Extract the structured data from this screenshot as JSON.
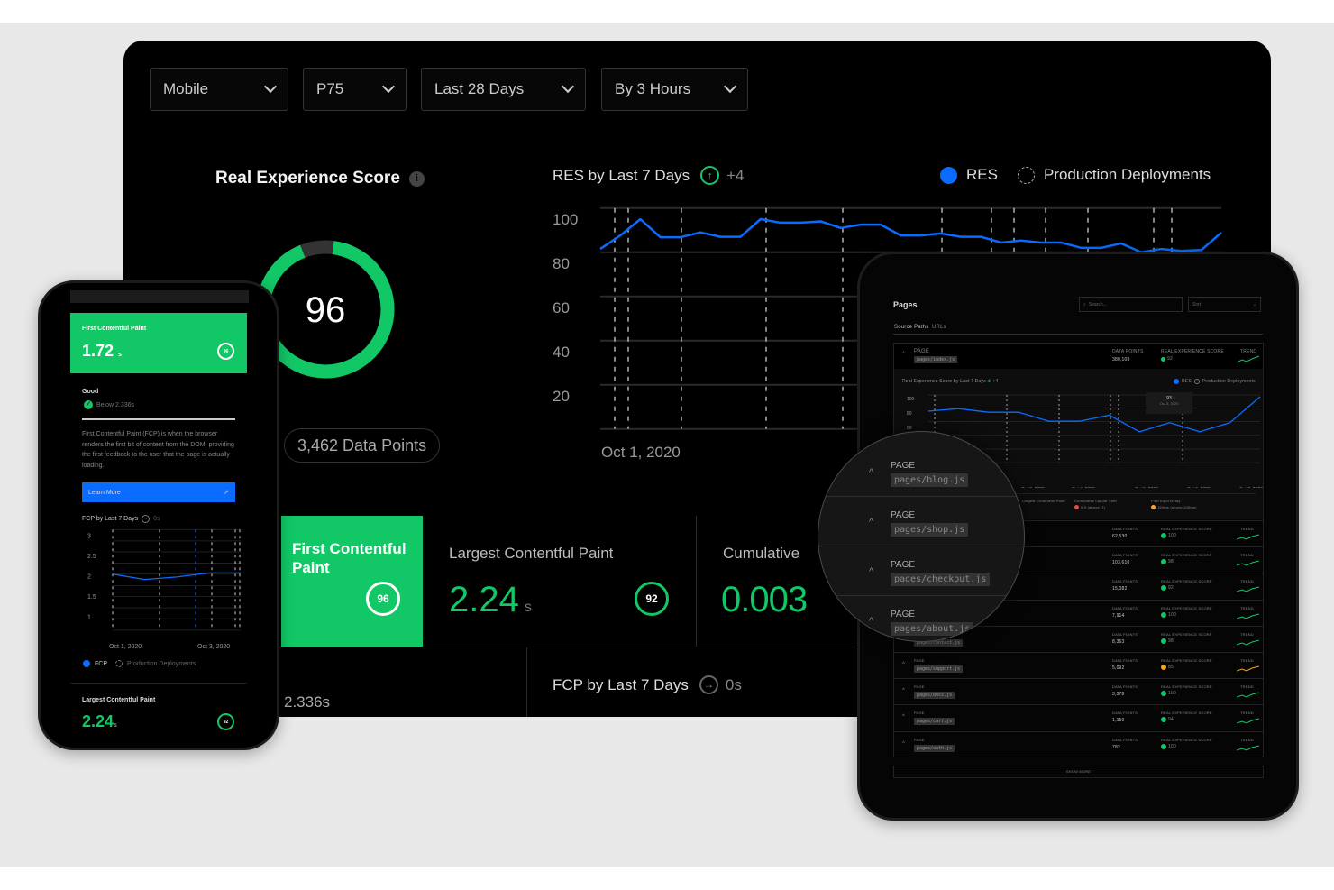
{
  "filters": [
    {
      "label": "Mobile"
    },
    {
      "label": "P75"
    },
    {
      "label": "Last 28 Days"
    },
    {
      "label": "By 3 Hours"
    }
  ],
  "res": {
    "title": "Real Experience Score",
    "info_icon": "info-icon",
    "score": 96,
    "score_label": "96",
    "data_points": "3,462 Data Points",
    "color": "#12c766"
  },
  "res_chart_header": {
    "title": "RES by Last 7 Days",
    "delta": "+4",
    "delta_icon": "arrow-up-circle-icon",
    "legend": [
      {
        "label": "RES",
        "color": "#0a6cff"
      },
      {
        "label": "Production Deployments"
      }
    ]
  },
  "metrics": [
    {
      "label": "First Contentful Paint",
      "score": "96",
      "highlight": true
    },
    {
      "label": "Largest Contentful Paint",
      "value": "2.24",
      "unit": "s",
      "score": "92"
    },
    {
      "label": "Cumulative",
      "value": "0.003"
    }
  ],
  "fcp_section": {
    "title": "FCP by Last 7 Days",
    "delta": "0s",
    "partial": "2.336s"
  },
  "phone": {
    "card": {
      "label": "First Contentful Paint",
      "value": "1.72",
      "unit": "s",
      "score": "96"
    },
    "status": "Good",
    "threshold": "Below 2.336s",
    "description": "First Contentful Paint (FCP) is when the browser renders the first bit of content from the DOM, providing the first feedback to the user that the page is actually loading.",
    "learn_more": "Learn More",
    "chart_title": "FCP by Last 7 Days",
    "chart_delta": "0s",
    "legend": [
      {
        "label": "FCP"
      },
      {
        "label": "Production Deployments"
      }
    ],
    "lcp": {
      "label": "Largest Contentful Paint",
      "value": "2.24",
      "unit": "s",
      "score": "92"
    }
  },
  "tablet": {
    "title": "Pages",
    "search_placeholder": "Search...",
    "select": "Sort",
    "tabs": [
      {
        "label": "Source Paths"
      },
      {
        "label": "URLs"
      }
    ],
    "col_page": "PAGE",
    "col_points": "DATA POINTS",
    "col_score": "REAL EXPERIENCE SCORE",
    "col_trend": "TREND",
    "first_row": {
      "page": "pages/index.js",
      "points": "380,109",
      "score": "92"
    },
    "chart_title": "Real Experience Score by Last 7 Days",
    "chart_delta": "+4",
    "chart_legend": [
      "RES",
      "Production Deployments"
    ],
    "tooltip": {
      "value": "93",
      "date": "Oct 5, 2020"
    },
    "metrics": [
      {
        "label": "Largest Contentful Paint"
      },
      {
        "label": "Cumulative Layout Shift",
        "value": "0.5 (above .1)",
        "color": "#e5484d"
      },
      {
        "label": "First Input Delay",
        "value": "150ms (above 100ms)",
        "color": "#f5a623"
      }
    ],
    "rows": [
      {
        "page": "pages/shop.js",
        "points": "62,530",
        "score": "100",
        "status": "#12c766"
      },
      {
        "page": "pages/checkout.js",
        "points": "103,610",
        "score": "98",
        "status": "#12c766"
      },
      {
        "page": "pages/about.js",
        "points": "15,082",
        "score": "92",
        "status": "#12c766"
      },
      {
        "page": "pages/blog.js",
        "points": "7,914",
        "score": "100",
        "status": "#12c766"
      },
      {
        "page": "pages/contact.js",
        "points": "8,363",
        "score": "98",
        "status": "#12c766"
      },
      {
        "page": "pages/support.js",
        "points": "5,092",
        "score": "85",
        "status": "#f5a623"
      },
      {
        "page": "pages/docs.js",
        "points": "3,378",
        "score": "100",
        "status": "#12c766"
      },
      {
        "page": "pages/cart.js",
        "points": "1,150",
        "score": "94",
        "status": "#12c766"
      },
      {
        "page": "pages/auth.js",
        "points": "782",
        "score": "100",
        "status": "#12c766"
      }
    ],
    "show_more": "SHOW MORE",
    "magnifier": [
      {
        "label": "PAGE",
        "page": "pages/blog.js"
      },
      {
        "label": "PAGE",
        "page": "pages/shop.js"
      },
      {
        "label": "PAGE",
        "page": "pages/checkout.js"
      },
      {
        "label": "PAGE",
        "page": "pages/about.js"
      }
    ]
  },
  "chart_data": [
    {
      "type": "line",
      "title": "RES by Last 7 Days",
      "series": [
        {
          "name": "RES",
          "values": [
            86.5,
            92.6,
            100,
            91.8,
            91.8,
            94,
            92,
            92,
            100,
            98.4,
            98.4,
            99,
            96,
            97.5,
            97.5,
            92.6,
            92.6,
            93.5,
            92,
            92,
            89.4,
            90.3,
            89.4,
            89.4,
            87,
            87,
            89,
            85,
            86.5,
            85.6,
            86,
            93.9
          ]
        }
      ],
      "yticks": [
        100,
        80,
        60,
        40,
        20
      ],
      "xticks": [
        "Oct 1, 2020"
      ],
      "ylim": [
        5,
        105
      ],
      "deployments": 12,
      "grid": true,
      "legend": "top-right"
    },
    {
      "type": "line",
      "title": "FCP by Last 7 Days",
      "series": [
        {
          "name": "FCP",
          "values": [
            2.05,
            1.92,
            1.98,
            2.08,
            2.08
          ]
        }
      ],
      "yticks": [
        3,
        2.5,
        2,
        1.5,
        1
      ],
      "xticks": [
        "Oct 1, 2020",
        "Oct 3, 2020"
      ],
      "ylim": [
        0.6,
        3.2
      ],
      "grid": true
    },
    {
      "type": "line",
      "title": "Real Experience Score by Last 7 Days",
      "series": [
        {
          "name": "RES",
          "values": [
            82.5,
            86,
            81,
            81,
            68.5,
            68.5,
            77,
            54,
            66.5,
            54,
            66.5,
            102.5
          ]
        }
      ],
      "yticks": [
        100,
        80,
        60
      ],
      "xticks": [
        "Oct 3, 2020",
        "Oct 4, 2020",
        "Oct 5, 2020",
        "Oct 6, 2020",
        "Oct 7, 2020"
      ],
      "grid": true
    }
  ]
}
